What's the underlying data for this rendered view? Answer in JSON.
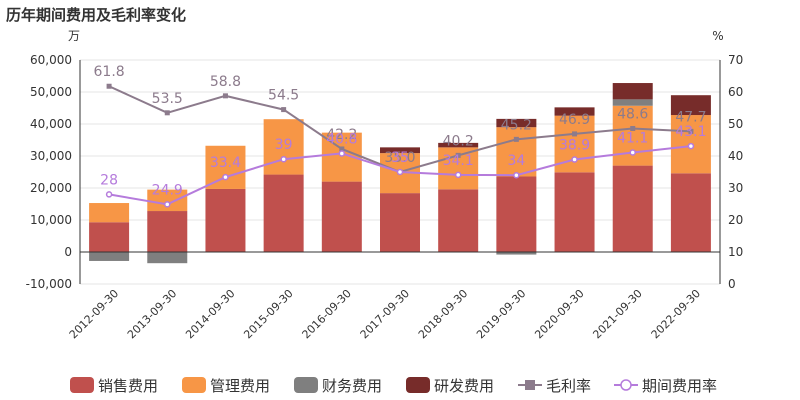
{
  "title": "历年期间费用及毛利率变化",
  "chart_data": {
    "type": "bar",
    "stacked": true,
    "categories": [
      "2012-09-30",
      "2013-09-30",
      "2014-09-30",
      "2015-09-30",
      "2016-09-30",
      "2017-09-30",
      "2018-09-30",
      "2019-09-30",
      "2020-09-30",
      "2021-09-30",
      "2022-09-30"
    ],
    "left_axis": {
      "unit": "万",
      "ylim": [
        -10000,
        60000
      ],
      "ticks": [
        "-10,000",
        "0",
        "10,000",
        "20,000",
        "30,000",
        "40,000",
        "50,000",
        "60,000"
      ]
    },
    "right_axis": {
      "unit": "%",
      "ylim": [
        0,
        70
      ],
      "ticks": [
        "0",
        "10",
        "20",
        "30",
        "40",
        "50",
        "60",
        "70"
      ]
    },
    "series": [
      {
        "name": "销售费用",
        "type": "bar",
        "axis": "left",
        "color": "#c0504d",
        "values": [
          9300,
          12800,
          19700,
          24200,
          22000,
          18400,
          19600,
          23600,
          24900,
          27000,
          24600
        ]
      },
      {
        "name": "管理费用",
        "type": "bar",
        "axis": "left",
        "color": "#f79646",
        "values": [
          6000,
          6700,
          13500,
          17300,
          15300,
          12500,
          13100,
          15400,
          17700,
          18700,
          18200
        ]
      },
      {
        "name": "财务费用",
        "type": "bar",
        "axis": "left",
        "color": "#7f7f7f",
        "values": [
          -2800,
          -3500,
          0,
          0,
          0,
          0,
          0,
          -800,
          0,
          2000,
          0
        ]
      },
      {
        "name": "研发费用",
        "type": "bar",
        "axis": "left",
        "color": "#772c2a",
        "values": [
          0,
          0,
          0,
          0,
          0,
          1800,
          1400,
          2600,
          2600,
          5100,
          6200
        ]
      },
      {
        "name": "毛利率",
        "type": "line",
        "axis": "right",
        "color": "#8c7b8c",
        "marker": "square",
        "values": [
          61.8,
          53.5,
          58.8,
          54.5,
          42.2,
          35.0,
          40.2,
          45.2,
          46.9,
          48.6,
          47.7
        ],
        "labels": [
          "61.8",
          "53.5",
          "58.8",
          "54.5",
          "42.2",
          "35.0",
          "40.2",
          "45.2",
          "46.9",
          "48.6",
          "47.7"
        ]
      },
      {
        "name": "期间费用率",
        "type": "line",
        "axis": "right",
        "color": "#b57bdc",
        "marker": "circle",
        "values": [
          28,
          24.9,
          33.4,
          39,
          40.8,
          35,
          34.1,
          34,
          38.9,
          41.1,
          43.1
        ],
        "labels": [
          "28",
          "24.9",
          "33.4",
          "39",
          "40.8",
          "35",
          "34.1",
          "34",
          "38.9",
          "41.1",
          "43.1"
        ]
      }
    ],
    "grid": "horizontal",
    "legend_position": "bottom"
  }
}
